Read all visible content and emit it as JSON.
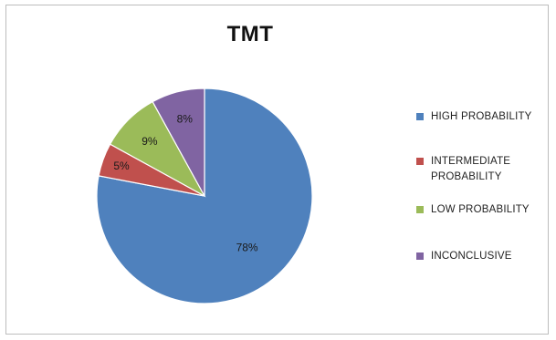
{
  "chart_data": {
    "type": "pie",
    "title": "TMT",
    "categories": [
      "HIGH PROBABILITY",
      "INTERMEDIATE\nPROBABILITY",
      "LOW PROBABILITY",
      "INCONCLUSIVE"
    ],
    "values": [
      78,
      5,
      9,
      8
    ],
    "data_labels": [
      "78%",
      "5%",
      "9%",
      "8%"
    ],
    "colors": [
      "#4f81bd",
      "#c0504d",
      "#9bbb59",
      "#8064a2"
    ],
    "legend_position": "right"
  }
}
